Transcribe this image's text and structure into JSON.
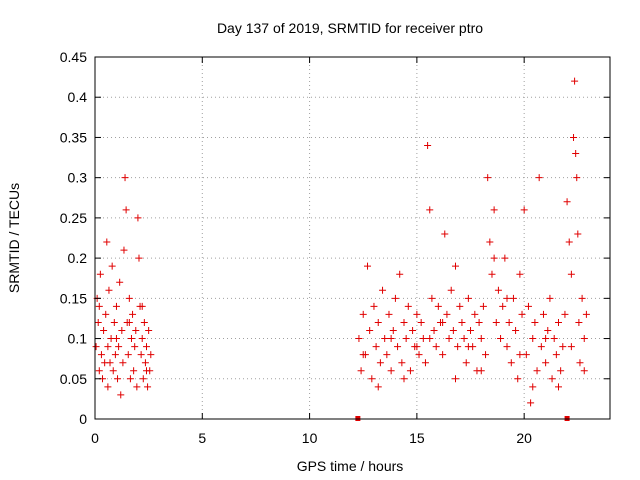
{
  "chart_data": {
    "type": "scatter",
    "title": "Day 137 of 2019, SRMTID for receiver ptro",
    "xlabel": "GPS time / hours",
    "ylabel": "SRMTID / TECUs",
    "xlim": [
      0,
      24
    ],
    "ylim": [
      0,
      0.45
    ],
    "xticks": [
      "0",
      "5",
      "10",
      "15",
      "20"
    ],
    "yticks": [
      "0",
      "0.05",
      "0.1",
      "0.15",
      "0.2",
      "0.25",
      "0.3",
      "0.35",
      "0.4",
      "0.45"
    ],
    "grid": true,
    "marker": "+",
    "color": "#e00000",
    "gap_markers": [
      {
        "x": 12.25,
        "y": 0
      },
      {
        "x": 22.0,
        "y": 0
      }
    ],
    "series": [
      {
        "name": "SRMTID",
        "points": [
          [
            0.05,
            0.09
          ],
          [
            0.1,
            0.15
          ],
          [
            0.15,
            0.12
          ],
          [
            0.2,
            0.06
          ],
          [
            0.25,
            0.18
          ],
          [
            0.3,
            0.08
          ],
          [
            0.35,
            0.05
          ],
          [
            0.4,
            0.11
          ],
          [
            0.45,
            0.07
          ],
          [
            0.5,
            0.13
          ],
          [
            0.55,
            0.22
          ],
          [
            0.6,
            0.09
          ],
          [
            0.65,
            0.16
          ],
          [
            0.7,
            0.07
          ],
          [
            0.75,
            0.1
          ],
          [
            0.8,
            0.19
          ],
          [
            0.85,
            0.06
          ],
          [
            0.9,
            0.12
          ],
          [
            0.95,
            0.08
          ],
          [
            1.0,
            0.14
          ],
          [
            1.05,
            0.05
          ],
          [
            1.1,
            0.09
          ],
          [
            1.15,
            0.17
          ],
          [
            1.2,
            0.03
          ],
          [
            1.25,
            0.11
          ],
          [
            1.3,
            0.07
          ],
          [
            1.35,
            0.21
          ],
          [
            1.4,
            0.3
          ],
          [
            1.45,
            0.26
          ],
          [
            1.5,
            0.12
          ],
          [
            1.55,
            0.08
          ],
          [
            1.6,
            0.15
          ],
          [
            1.65,
            0.05
          ],
          [
            1.7,
            0.1
          ],
          [
            1.75,
            0.13
          ],
          [
            1.8,
            0.06
          ],
          [
            1.85,
            0.09
          ],
          [
            1.9,
            0.11
          ],
          [
            1.95,
            0.04
          ],
          [
            2.0,
            0.25
          ],
          [
            2.05,
            0.2
          ],
          [
            2.1,
            0.14
          ],
          [
            2.15,
            0.08
          ],
          [
            2.2,
            0.1
          ],
          [
            2.25,
            0.05
          ],
          [
            2.3,
            0.12
          ],
          [
            2.35,
            0.07
          ],
          [
            2.4,
            0.09
          ],
          [
            2.45,
            0.04
          ],
          [
            2.5,
            0.11
          ],
          [
            2.55,
            0.06
          ],
          [
            2.6,
            0.08
          ],
          [
            0.2,
            0.14
          ],
          [
            0.6,
            0.04
          ],
          [
            1.0,
            0.1
          ],
          [
            1.6,
            0.12
          ],
          [
            2.2,
            0.14
          ],
          [
            2.4,
            0.06
          ],
          [
            12.3,
            0.1
          ],
          [
            12.4,
            0.06
          ],
          [
            12.5,
            0.13
          ],
          [
            12.6,
            0.08
          ],
          [
            12.7,
            0.19
          ],
          [
            12.8,
            0.11
          ],
          [
            12.9,
            0.05
          ],
          [
            13.0,
            0.14
          ],
          [
            13.1,
            0.09
          ],
          [
            13.2,
            0.12
          ],
          [
            13.3,
            0.07
          ],
          [
            13.4,
            0.16
          ],
          [
            13.5,
            0.1
          ],
          [
            13.6,
            0.08
          ],
          [
            13.7,
            0.13
          ],
          [
            13.8,
            0.06
          ],
          [
            13.9,
            0.11
          ],
          [
            14.0,
            0.15
          ],
          [
            14.1,
            0.09
          ],
          [
            14.2,
            0.18
          ],
          [
            14.3,
            0.07
          ],
          [
            14.4,
            0.12
          ],
          [
            14.5,
            0.1
          ],
          [
            14.6,
            0.14
          ],
          [
            14.7,
            0.06
          ],
          [
            14.8,
            0.11
          ],
          [
            14.9,
            0.09
          ],
          [
            15.0,
            0.13
          ],
          [
            15.1,
            0.08
          ],
          [
            15.2,
            0.12
          ],
          [
            15.3,
            0.1
          ],
          [
            15.4,
            0.07
          ],
          [
            15.5,
            0.34
          ],
          [
            15.6,
            0.26
          ],
          [
            15.7,
            0.15
          ],
          [
            15.8,
            0.11
          ],
          [
            15.9,
            0.09
          ],
          [
            16.0,
            0.14
          ],
          [
            16.1,
            0.12
          ],
          [
            16.2,
            0.08
          ],
          [
            16.3,
            0.23
          ],
          [
            16.4,
            0.13
          ],
          [
            16.5,
            0.1
          ],
          [
            16.6,
            0.16
          ],
          [
            16.7,
            0.11
          ],
          [
            16.8,
            0.19
          ],
          [
            16.9,
            0.09
          ],
          [
            17.0,
            0.14
          ],
          [
            17.1,
            0.12
          ],
          [
            17.2,
            0.1
          ],
          [
            17.3,
            0.07
          ],
          [
            17.4,
            0.15
          ],
          [
            17.5,
            0.11
          ],
          [
            17.6,
            0.09
          ],
          [
            17.7,
            0.13
          ],
          [
            17.8,
            0.06
          ],
          [
            17.9,
            0.12
          ],
          [
            18.0,
            0.1
          ],
          [
            18.1,
            0.14
          ],
          [
            18.2,
            0.08
          ],
          [
            18.3,
            0.3
          ],
          [
            18.4,
            0.22
          ],
          [
            18.5,
            0.18
          ],
          [
            18.6,
            0.26
          ],
          [
            18.7,
            0.12
          ],
          [
            18.8,
            0.16
          ],
          [
            18.9,
            0.1
          ],
          [
            19.0,
            0.14
          ],
          [
            19.1,
            0.2
          ],
          [
            19.2,
            0.09
          ],
          [
            19.3,
            0.12
          ],
          [
            19.4,
            0.07
          ],
          [
            19.5,
            0.15
          ],
          [
            19.6,
            0.11
          ],
          [
            19.7,
            0.05
          ],
          [
            19.8,
            0.18
          ],
          [
            19.9,
            0.13
          ],
          [
            20.0,
            0.26
          ],
          [
            20.1,
            0.08
          ],
          [
            20.2,
            0.14
          ],
          [
            20.3,
            0.02
          ],
          [
            20.4,
            0.1
          ],
          [
            20.5,
            0.12
          ],
          [
            20.6,
            0.06
          ],
          [
            20.7,
            0.3
          ],
          [
            20.8,
            0.09
          ],
          [
            20.9,
            0.13
          ],
          [
            21.0,
            0.07
          ],
          [
            21.1,
            0.11
          ],
          [
            21.2,
            0.15
          ],
          [
            21.3,
            0.05
          ],
          [
            21.4,
            0.1
          ],
          [
            21.5,
            0.08
          ],
          [
            21.6,
            0.12
          ],
          [
            21.7,
            0.06
          ],
          [
            21.8,
            0.09
          ],
          [
            21.9,
            0.13
          ],
          [
            22.0,
            0.27
          ],
          [
            22.1,
            0.22
          ],
          [
            22.2,
            0.18
          ],
          [
            22.3,
            0.35
          ],
          [
            22.35,
            0.42
          ],
          [
            22.4,
            0.33
          ],
          [
            22.45,
            0.3
          ],
          [
            22.5,
            0.23
          ],
          [
            22.55,
            0.12
          ],
          [
            22.6,
            0.07
          ],
          [
            22.7,
            0.15
          ],
          [
            22.8,
            0.1
          ],
          [
            22.9,
            0.13
          ],
          [
            12.5,
            0.08
          ],
          [
            13.2,
            0.04
          ],
          [
            13.8,
            0.1
          ],
          [
            14.4,
            0.05
          ],
          [
            15.0,
            0.09
          ],
          [
            15.6,
            0.1
          ],
          [
            16.2,
            0.12
          ],
          [
            16.8,
            0.05
          ],
          [
            17.4,
            0.09
          ],
          [
            18.0,
            0.06
          ],
          [
            18.6,
            0.2
          ],
          [
            19.2,
            0.15
          ],
          [
            19.8,
            0.08
          ],
          [
            20.4,
            0.04
          ],
          [
            21.0,
            0.1
          ],
          [
            21.6,
            0.04
          ],
          [
            22.2,
            0.09
          ],
          [
            22.8,
            0.06
          ]
        ]
      }
    ]
  }
}
